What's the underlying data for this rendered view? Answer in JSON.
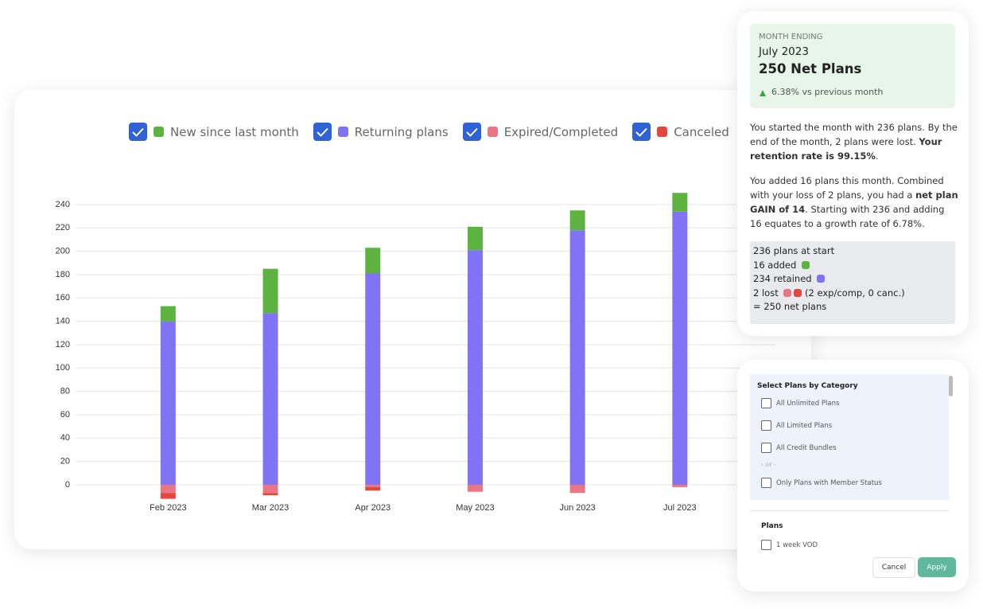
{
  "chart_data": {
    "type": "stacked-bar",
    "categories": [
      "Feb 2023",
      "Mar 2023",
      "Apr 2023",
      "May 2023",
      "Jun 2023",
      "Jul 2023"
    ],
    "series": [
      {
        "name": "New since last month",
        "color": "#5cb33f",
        "values": [
          13,
          38,
          22,
          20,
          17,
          16
        ]
      },
      {
        "name": "Returning plans",
        "color": "#8173f5",
        "values": [
          140,
          147,
          181,
          201,
          218,
          234
        ]
      },
      {
        "name": "Expired/Completed",
        "color": "#ea7585",
        "values": [
          -7,
          -7,
          -2,
          -6,
          -7,
          -2
        ]
      },
      {
        "name": "Canceled",
        "color": "#e0473f",
        "values": [
          -5,
          -2,
          -3,
          0,
          0,
          0
        ]
      }
    ],
    "ylim": [
      -20,
      250
    ],
    "yticks": [
      0,
      20,
      40,
      60,
      80,
      100,
      120,
      140,
      160,
      180,
      200,
      220,
      240
    ],
    "grid": true
  },
  "summary": {
    "label": "MONTH ENDING",
    "month": "July 2023",
    "headline": "250 Net Plans",
    "change": "6.38% vs previous month",
    "paragraph1": [
      "You started the month with 236 plans. By the end of the month, 2 plans were lost. ",
      "Your retention rate is 99.15%",
      "."
    ],
    "paragraph2": [
      "You added 16 plans this month. Combined with your loss of 2 plans, you had a ",
      "net plan GAIN of 14",
      ". Starting with 236 and adding 16 equates to a growth rate of 6.78%."
    ],
    "lines": [
      "236 plans at start",
      "16 added",
      "234 retained",
      "2 lost",
      "(2 exp/comp, 0 canc.)",
      "= 250 net plans"
    ]
  },
  "filter": {
    "title": "Select Plans by Category",
    "options": [
      "All Unlimited Plans",
      "All Limited Plans",
      "All Credit Bundles"
    ],
    "separator": "- or -",
    "member_option": "Only Plans with Member Status",
    "plans_title": "Plans",
    "plans": [
      "1 week VOD"
    ],
    "cancel": "Cancel",
    "apply": "Apply"
  }
}
